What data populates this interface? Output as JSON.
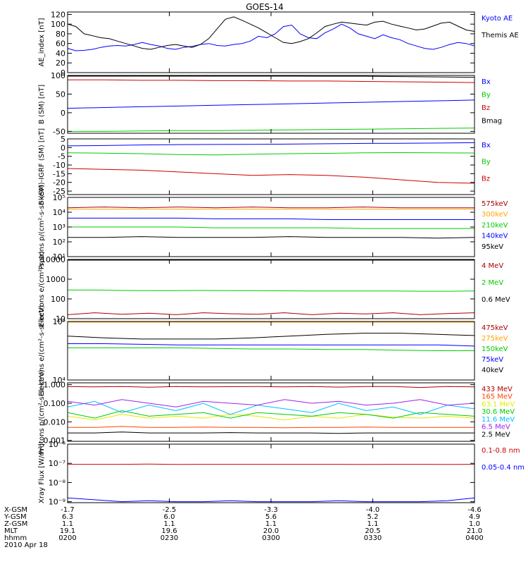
{
  "title": "GOES-14",
  "colors": {
    "black": "#000000",
    "blue": "#0000ff",
    "green": "#00cc00",
    "red": "#cc0000",
    "orange": "#ffa500",
    "cyan": "#00bfff",
    "magenta": "#a020f0",
    "yellow": "#e8e800",
    "dkred": "#aa0000"
  },
  "chart_data": [
    {
      "type": "line",
      "ylabel": "AE_index [nT]",
      "ylim": [
        0,
        125
      ],
      "yticks": [
        "0",
        "20",
        "40",
        "60",
        "80",
        "100",
        "120"
      ],
      "ytick_values": [
        0,
        20,
        40,
        60,
        80,
        100,
        120
      ],
      "series": [
        {
          "name": "Kyoto AE",
          "color": "#0000ff",
          "values": [
            50,
            45,
            46,
            48,
            52,
            55,
            56,
            55,
            58,
            62,
            58,
            55,
            50,
            48,
            52,
            54,
            58,
            60,
            56,
            55,
            58,
            60,
            65,
            75,
            72,
            80,
            95,
            98,
            80,
            72,
            70,
            82,
            90,
            100,
            92,
            80,
            75,
            70,
            78,
            72,
            68,
            60,
            55,
            50,
            48,
            52,
            58,
            62,
            60,
            55
          ]
        },
        {
          "name": "Themis AE",
          "color": "#000000",
          "values": [
            100,
            95,
            80,
            76,
            72,
            70,
            65,
            60,
            55,
            50,
            48,
            52,
            56,
            58,
            55,
            52,
            58,
            70,
            90,
            110,
            115,
            108,
            100,
            92,
            82,
            72,
            62,
            60,
            64,
            70,
            82,
            95,
            100,
            104,
            102,
            100,
            98,
            104,
            106,
            100,
            96,
            92,
            88,
            90,
            96,
            102,
            104,
            96,
            88,
            85
          ]
        }
      ]
    },
    {
      "type": "line",
      "ylabel": "B (SM) [nT]",
      "ylim": [
        -55,
        100
      ],
      "yticks": [
        "-50",
        "0",
        "50",
        "100"
      ],
      "ytick_values": [
        -50,
        0,
        50,
        100
      ],
      "series": [
        {
          "name": "Bx",
          "color": "#0000ff",
          "values": [
            12,
            14,
            16,
            18,
            20,
            22,
            24,
            26,
            28,
            30,
            32,
            34
          ]
        },
        {
          "name": "By",
          "color": "#00cc00",
          "values": [
            -50,
            -50,
            -49,
            -48,
            -48,
            -47,
            -46,
            -45,
            -44,
            -43,
            -42,
            -41
          ]
        },
        {
          "name": "Bz",
          "color": "#cc0000",
          "values": [
            88,
            88,
            87,
            87,
            86,
            86,
            85,
            85,
            84,
            83,
            82,
            81
          ]
        },
        {
          "name": "Bmag",
          "color": "#000000",
          "values": [
            100,
            100,
            100,
            100,
            99,
            99,
            99,
            98,
            98,
            97,
            96,
            95
          ]
        }
      ]
    },
    {
      "type": "line",
      "ylabel": "B (SM)-IGRF (SM) [nT]",
      "ylim": [
        -27,
        5
      ],
      "yticks": [
        "-25",
        "-20",
        "-15",
        "-10",
        "-5",
        "0",
        "5"
      ],
      "ytick_values": [
        -25,
        -20,
        -15,
        -10,
        -5,
        0,
        5
      ],
      "series": [
        {
          "name": "Bx",
          "color": "#0000ff",
          "values": [
            1,
            1.2,
            1.5,
            1.7,
            1.8,
            1.9,
            2.0,
            2.2,
            2.4,
            2.5,
            2.6,
            2.8
          ]
        },
        {
          "name": "By",
          "color": "#00cc00",
          "values": [
            -3,
            -3.2,
            -3.5,
            -4,
            -4.2,
            -3.8,
            -3.5,
            -3.3,
            -3.0,
            -2.9,
            -3.0,
            -3.1
          ]
        },
        {
          "name": "Bz",
          "color": "#cc0000",
          "values": [
            -12,
            -12.5,
            -13,
            -14,
            -15,
            -16,
            -15.5,
            -16,
            -17,
            -18.5,
            -20,
            -20.5
          ]
        }
      ]
    },
    {
      "type": "line",
      "ylabel": "Protons p/(cm²-s-sr-keV)",
      "yscale": "log",
      "ylim": [
        1,
        5
      ],
      "yticks": [
        "10¹",
        "10²",
        "10³",
        "10⁴",
        "10⁵"
      ],
      "ytick_values": [
        1,
        2,
        3,
        4,
        5
      ],
      "series": [
        {
          "name": "575keV",
          "color": "#aa0000",
          "values": [
            4.3,
            4.35,
            4.3,
            4.35,
            4.3,
            4.35,
            4.3,
            4.3,
            4.35,
            4.3,
            4.3,
            4.3
          ]
        },
        {
          "name": "300keV",
          "color": "#ffa500",
          "values": [
            4.2,
            4.2,
            4.2,
            4.2,
            4.2,
            4.2,
            4.2,
            4.2,
            4.2,
            4.2,
            4.2,
            4.2
          ]
        },
        {
          "name": "210keV",
          "color": "#00cc00",
          "values": [
            3.0,
            3.0,
            3.0,
            3.0,
            2.95,
            2.95,
            2.95,
            2.95,
            2.9,
            2.9,
            2.9,
            2.9
          ]
        },
        {
          "name": "140keV",
          "color": "#0000ff",
          "values": [
            3.6,
            3.6,
            3.6,
            3.6,
            3.55,
            3.55,
            3.55,
            3.5,
            3.5,
            3.5,
            3.5,
            3.5
          ]
        },
        {
          "name": "95keV",
          "color": "#000000",
          "values": [
            2.3,
            2.3,
            2.35,
            2.3,
            2.3,
            2.3,
            2.35,
            2.3,
            2.3,
            2.3,
            2.25,
            2.3
          ]
        }
      ]
    },
    {
      "type": "line",
      "ylabel": "Electrons e/(cm²-s-sr)",
      "yscale": "log",
      "ylim": [
        1,
        4
      ],
      "yticks": [
        "10",
        "100",
        "1000",
        "10000"
      ],
      "ytick_values": [
        1,
        2,
        3,
        4
      ],
      "series": [
        {
          "name": "4 MeV",
          "color": "#aa0000",
          "values": [
            1.2,
            1.3,
            1.22,
            1.28,
            1.2,
            1.3,
            1.25,
            1.22,
            1.3,
            1.2,
            1.28,
            1.24,
            1.3,
            1.2,
            1.26,
            1.3
          ]
        },
        {
          "name": "2 MeV",
          "color": "#00cc00",
          "values": [
            2.45,
            2.45,
            2.43,
            2.42,
            2.42,
            2.43,
            2.42,
            2.42,
            2.41,
            2.4,
            2.4,
            2.4,
            2.4,
            2.39,
            2.39,
            2.4
          ]
        },
        {
          "name": "0.6 MeV",
          "color": "#000000",
          "values": [
            4.0,
            4.0,
            4.0,
            4.0,
            4.0,
            4.0,
            4.0,
            4.0,
            4.0,
            4.0,
            4.0,
            4.0,
            4.0,
            4.0,
            4.0,
            4.0
          ]
        }
      ]
    },
    {
      "type": "line",
      "ylabel": "Electrons e/(cm²-s-sr-keV)",
      "yscale": "log",
      "ylim": [
        4,
        5
      ],
      "yticks": [
        "10⁴",
        "10⁵"
      ],
      "ytick_values": [
        4,
        5
      ],
      "series": [
        {
          "name": "475keV",
          "color": "#aa0000",
          "values": [
            5,
            5,
            5,
            5,
            5,
            5,
            5,
            5,
            5,
            5,
            5,
            5
          ]
        },
        {
          "name": "275keV",
          "color": "#ffa500",
          "values": [
            5,
            5,
            5,
            5,
            5,
            5,
            5,
            5,
            5,
            5,
            5,
            5
          ]
        },
        {
          "name": "150keV",
          "color": "#00cc00",
          "values": [
            4.55,
            4.55,
            4.55,
            4.55,
            4.54,
            4.53,
            4.53,
            4.52,
            4.52,
            4.51,
            4.5,
            4.5
          ]
        },
        {
          "name": "75keV",
          "color": "#0000ff",
          "values": [
            4.62,
            4.62,
            4.61,
            4.6,
            4.6,
            4.6,
            4.6,
            4.6,
            4.6,
            4.6,
            4.6,
            4.58
          ]
        },
        {
          "name": "40keV",
          "color": "#000000",
          "values": [
            4.75,
            4.72,
            4.7,
            4.7,
            4.7,
            4.72,
            4.75,
            4.78,
            4.8,
            4.8,
            4.78,
            4.76
          ]
        }
      ]
    },
    {
      "type": "line",
      "ylabel": "Protons p/(cm²-s-sr-keV)",
      "yscale": "log",
      "ylim": [
        -3.05,
        0.1
      ],
      "yticks": [
        "0.001",
        "0.010",
        "0.100",
        "1.000"
      ],
      "ytick_values": [
        -3,
        -2,
        -1,
        0
      ],
      "series": [
        {
          "name": "433 MeV",
          "color": "#aa0000",
          "values": [
            -0.1,
            -0.12,
            -0.1,
            -0.14,
            -0.1,
            -0.12,
            -0.11,
            -0.1,
            -0.12,
            -0.1,
            -0.13,
            -0.1,
            -0.1,
            -0.15,
            -0.1,
            -0.12
          ]
        },
        {
          "name": "165 MeV",
          "color": "#ff4500",
          "values": [
            -2.3,
            -2.3,
            -2.25,
            -2.3,
            -2.3,
            -2.28,
            -2.3,
            -2.3,
            -2.32,
            -2.3,
            -2.3,
            -2.28,
            -2.3,
            -2.3,
            -2.3,
            -2.3
          ]
        },
        {
          "name": "63.1 MeV",
          "color": "#e8e800",
          "values": [
            -1.7,
            -1.9,
            -1.6,
            -1.8,
            -1.7,
            -1.8,
            -1.6,
            -1.7,
            -1.9,
            -1.7,
            -1.8,
            -1.6,
            -1.75,
            -1.8,
            -1.7,
            -1.8
          ]
        },
        {
          "name": "30.6 MeV",
          "color": "#00cc00",
          "values": [
            -1.5,
            -1.8,
            -1.4,
            -1.7,
            -1.6,
            -1.5,
            -1.8,
            -1.5,
            -1.6,
            -1.7,
            -1.5,
            -1.6,
            -1.8,
            -1.5,
            -1.6,
            -1.7
          ]
        },
        {
          "name": "11.6 MeV",
          "color": "#00bfff",
          "values": [
            -1.2,
            -0.9,
            -1.5,
            -1.1,
            -1.4,
            -1.0,
            -1.6,
            -1.1,
            -1.3,
            -1.5,
            -1.0,
            -1.4,
            -1.2,
            -1.6,
            -1.1,
            -1.3
          ]
        },
        {
          "name": "6.5 MeV",
          "color": "#a020f0",
          "values": [
            -0.9,
            -1.1,
            -0.8,
            -1.0,
            -1.2,
            -0.9,
            -1.0,
            -1.1,
            -0.8,
            -1.0,
            -0.9,
            -1.1,
            -1.0,
            -0.8,
            -1.1,
            -1.0
          ]
        },
        {
          "name": "2.5 MeV",
          "color": "#000000",
          "values": [
            -2.6,
            -2.6,
            -2.55,
            -2.6,
            -2.6,
            -2.6,
            -2.58,
            -2.6,
            -2.6,
            -2.6,
            -2.62,
            -2.6,
            -2.6,
            -2.6,
            -2.6,
            -2.6
          ]
        }
      ]
    },
    {
      "type": "line",
      "ylabel": "Xray Flux [W/m²]",
      "yscale": "log",
      "ylim": [
        -9.05,
        -6
      ],
      "yticks": [
        "10⁻⁹",
        "10⁻⁸",
        "10⁻⁷",
        "10⁻⁶"
      ],
      "ytick_values": [
        -9,
        -8,
        -7,
        -6
      ],
      "series": [
        {
          "name": "0.1-0.8 nm",
          "color": "#cc0000",
          "values": [
            -7.05,
            -7.05,
            -7.05,
            -7.04,
            -7.06,
            -7.05,
            -7.05,
            -7.05,
            -7.05,
            -7.05,
            -7.05,
            -7.06,
            -7.05,
            -7.05,
            -7.06,
            -7.05
          ]
        },
        {
          "name": "0.05-0.4 nm",
          "color": "#0000ff",
          "values": [
            -8.8,
            -8.9,
            -9.0,
            -8.95,
            -9.0,
            -9.0,
            -8.95,
            -9.0,
            -9.0,
            -9.0,
            -8.95,
            -9.0,
            -9.0,
            -9.0,
            -8.95,
            -8.8
          ]
        }
      ]
    }
  ],
  "legends": [
    [
      "Kyoto AE",
      "Themis AE"
    ],
    [
      "Bx",
      "By",
      "Bz",
      "Bmag"
    ],
    [
      "Bx",
      "By",
      "Bz"
    ],
    [
      "575keV",
      "300keV",
      "210keV",
      "140keV",
      "95keV"
    ],
    [
      "4 MeV",
      "2 MeV",
      "0.6 MeV"
    ],
    [
      "475keV",
      "275keV",
      "150keV",
      "75keV",
      "40keV"
    ],
    [
      "433 MeV",
      "165 MeV",
      "63.1 MeV",
      "30.6 MeV",
      "11.6 MeV",
      "6.5 MeV",
      "2.5 MeV"
    ],
    [
      "0.1-0.8 nm",
      "0.05-0.4 nm"
    ]
  ],
  "footer": {
    "rows": [
      {
        "label": "X-GSM",
        "values": [
          "-1.7",
          "-2.5",
          "-3.3",
          "-4.0",
          "-4.6"
        ]
      },
      {
        "label": "Y-GSM",
        "values": [
          "6.3",
          "6.0",
          "5.6",
          "5.2",
          "4.9"
        ]
      },
      {
        "label": "Z-GSM",
        "values": [
          "1.1",
          "1.1",
          "1.1",
          "1.1",
          "1.0"
        ]
      },
      {
        "label": "MLT",
        "values": [
          "19.1",
          "19.6",
          "20.0",
          "20.5",
          "21.0"
        ]
      },
      {
        "label": "hhmm",
        "values": [
          "0200",
          "0230",
          "0300",
          "0330",
          "0400"
        ]
      }
    ],
    "date": "2010 Apr 18"
  }
}
